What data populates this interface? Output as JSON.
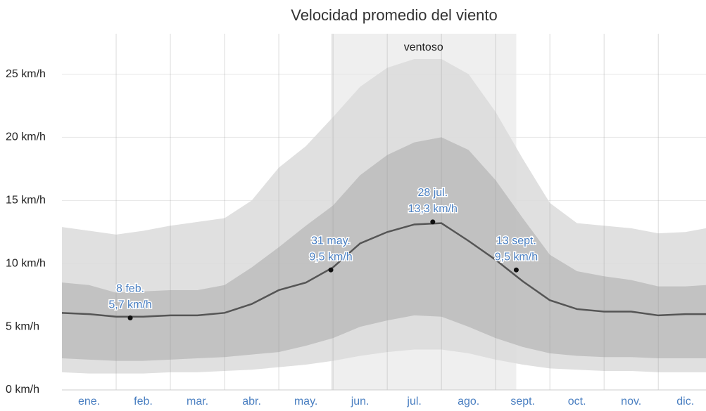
{
  "chart_data": {
    "type": "band-line",
    "title": "Velocidad promedio del viento",
    "categories": [
      "ene.",
      "feb.",
      "mar.",
      "abr.",
      "may.",
      "jun.",
      "jul.",
      "ago.",
      "sept.",
      "oct.",
      "nov.",
      "dic."
    ],
    "x": [
      0,
      0.5,
      1,
      1.5,
      2,
      2.5,
      3,
      3.5,
      4,
      4.5,
      5,
      5.5,
      6,
      6.5,
      7,
      7.5,
      8,
      8.5,
      9,
      9.5,
      10,
      10.5,
      11,
      11.5,
      11.88
    ],
    "xlim": [
      0,
      11.88
    ],
    "ylim": [
      0,
      28.2
    ],
    "yticks": [
      {
        "value": 0,
        "label": "0 km/h"
      },
      {
        "value": 5,
        "label": "5 km/h"
      },
      {
        "value": 10,
        "label": "10 km/h"
      },
      {
        "value": 15,
        "label": "15 km/h"
      },
      {
        "value": 20,
        "label": "20 km/h"
      },
      {
        "value": 25,
        "label": "25 km/h"
      }
    ],
    "grid": true,
    "region": {
      "label": "ventoso",
      "x": [
        4.96,
        8.38
      ],
      "color": "#efefef"
    },
    "bands": [
      {
        "color": "#dadada",
        "high": [
          12.9,
          12.6,
          12.3,
          12.6,
          13.0,
          13.3,
          13.6,
          15.0,
          17.6,
          19.3,
          21.6,
          24.0,
          25.5,
          26.2,
          26.2,
          25.0,
          22.0,
          18.3,
          14.8,
          13.2,
          13.0,
          12.8,
          12.4,
          12.5,
          12.8
        ],
        "low": [
          1.4,
          1.3,
          1.3,
          1.3,
          1.4,
          1.4,
          1.5,
          1.6,
          1.8,
          2.0,
          2.3,
          2.7,
          3.0,
          3.2,
          3.2,
          2.9,
          2.4,
          2.0,
          1.7,
          1.6,
          1.5,
          1.5,
          1.4,
          1.4,
          1.4
        ]
      },
      {
        "color": "#bcbcbc",
        "high": [
          8.5,
          8.3,
          7.7,
          7.8,
          7.9,
          7.9,
          8.3,
          9.7,
          11.3,
          13.0,
          14.6,
          17.0,
          18.6,
          19.6,
          20.0,
          19.0,
          16.6,
          13.6,
          10.7,
          9.4,
          9.0,
          8.7,
          8.2,
          8.2,
          8.3
        ],
        "low": [
          2.5,
          2.4,
          2.3,
          2.3,
          2.4,
          2.5,
          2.6,
          2.8,
          3.0,
          3.5,
          4.1,
          5.0,
          5.5,
          5.9,
          5.8,
          5.0,
          4.1,
          3.4,
          2.9,
          2.7,
          2.6,
          2.6,
          2.5,
          2.5,
          2.5
        ]
      }
    ],
    "series": [
      {
        "color": "#555555",
        "values": [
          6.1,
          6.0,
          5.8,
          5.8,
          5.9,
          5.9,
          6.1,
          6.8,
          7.9,
          8.5,
          9.7,
          11.6,
          12.5,
          13.1,
          13.2,
          11.8,
          10.3,
          8.6,
          7.1,
          6.4,
          6.2,
          6.2,
          5.9,
          6.0,
          6.0
        ]
      }
    ],
    "annotations": [
      {
        "x": 1.26,
        "value": 5.7,
        "date_label": "8 feb.",
        "value_label": "5,7 km/h"
      },
      {
        "x": 4.96,
        "value": 9.5,
        "date_label": "31 may.",
        "value_label": "9,5 km/h"
      },
      {
        "x": 6.84,
        "value": 13.3,
        "date_label": "28 jul.",
        "value_label": "13,3 km/h"
      },
      {
        "x": 8.38,
        "value": 9.5,
        "date_label": "13 sept.",
        "value_label": "9,5 km/h"
      }
    ]
  }
}
